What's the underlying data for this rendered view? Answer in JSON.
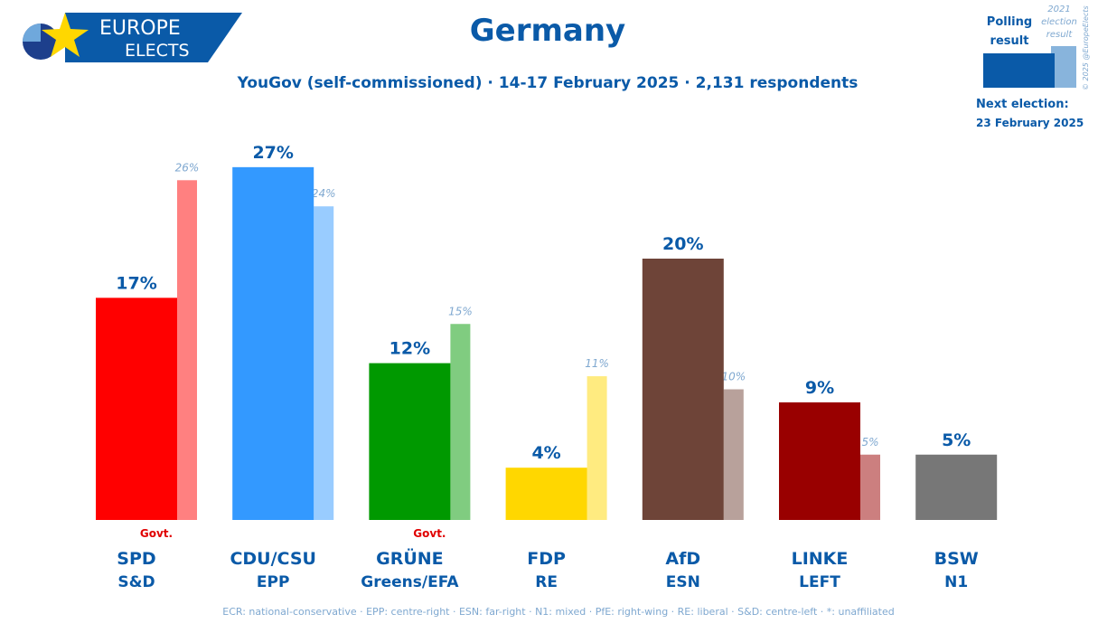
{
  "header": {
    "title": "Germany",
    "subtitle": "YouGov (self-commissioned) · 14-17 February 2025 · 2,131 respondents"
  },
  "logo": {
    "line1": "EUROPE",
    "line2": "ELECTS"
  },
  "legend": {
    "polling_label_1": "Polling",
    "polling_label_2": "result",
    "election_label_1": "2021",
    "election_label_2": "election",
    "election_label_3": "result",
    "copyright": "© 2025 @EuropeElects"
  },
  "next_election": {
    "label": "Next election:",
    "date": "23 February 2025"
  },
  "footer": {
    "note": "ECR: national-conservative · EPP: centre-right · ESN: far-right · N1: mixed · PfE: right-wing · RE: liberal · S&D: centre-left · *: unaffiliated"
  },
  "colors": {
    "brand_blue": "#0a5aa8",
    "light_label": "#7fa8d0",
    "govt_red": "#e00000"
  },
  "chart_data": {
    "type": "bar",
    "title": "Germany",
    "subtitle": "YouGov (self-commissioned) · 14-17 February 2025 · 2,131 respondents",
    "ylim": [
      0,
      30
    ],
    "grid": false,
    "legend_position": "top-right",
    "categories": [
      "SPD",
      "CDU/CSU",
      "GRÜNE",
      "FDP",
      "AfD",
      "LINKE",
      "BSW"
    ],
    "groups": [
      "S&D",
      "EPP",
      "Greens/EFA",
      "RE",
      "ESN",
      "LEFT",
      "N1"
    ],
    "series": [
      {
        "name": "Polling result",
        "values": [
          17,
          27,
          12,
          4,
          20,
          9,
          5
        ],
        "labels": [
          "17%",
          "27%",
          "12%",
          "4%",
          "20%",
          "9%",
          "5%"
        ],
        "colors": [
          "#ff0000",
          "#3399ff",
          "#009900",
          "#ffd700",
          "#6e4438",
          "#990000",
          "#777777"
        ]
      },
      {
        "name": "2021 election result",
        "values": [
          26,
          24,
          15,
          11,
          10,
          5,
          null
        ],
        "labels": [
          "26%",
          "24%",
          "15%",
          "11%",
          "10%",
          "5%",
          null
        ],
        "colors": [
          "#ff8080",
          "#99ccff",
          "#80cc80",
          "#ffeb80",
          "#b8a19b",
          "#cc7f7f",
          null
        ]
      }
    ],
    "govt_label": "Govt.",
    "government_parties": [
      "SPD",
      "GRÜNE"
    ]
  }
}
